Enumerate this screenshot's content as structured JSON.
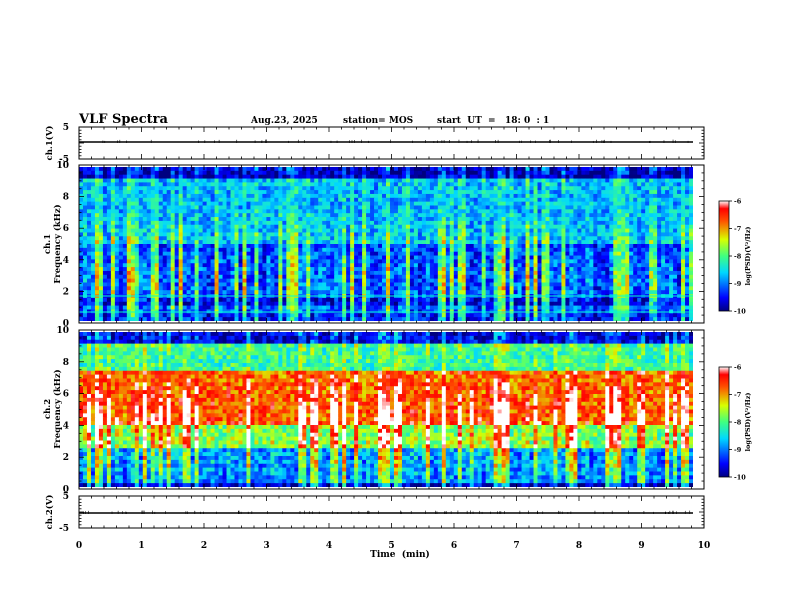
{
  "header": {
    "title": "VLF Spectra",
    "date": "Aug.23, 2025",
    "station": "station= MOS",
    "start": "start  UT  =   18: 0  : 1"
  },
  "chart_data": [
    {
      "type": "line",
      "ylabel": "ch.1(V)",
      "ylim": [
        -5,
        5
      ],
      "yticks": [
        "5",
        "-5"
      ],
      "xlim": [
        0,
        10
      ],
      "baseline": -1.5
    },
    {
      "type": "heatmap",
      "ylabel": "ch.1\nFrequency (kHz)",
      "ylim": [
        0,
        10
      ],
      "yticks": [
        "0",
        "2",
        "4",
        "6",
        "8",
        "10"
      ],
      "xlim": [
        0,
        10
      ],
      "colorbar": {
        "label": "log(PSD)(V²/Hz)",
        "range": [
          -10,
          -6
        ],
        "ticks": [
          "-6",
          "-7",
          "-8",
          "-9",
          "-10"
        ]
      }
    },
    {
      "type": "heatmap",
      "ylabel": "ch.2\nFrequency (kHz)",
      "ylim": [
        0,
        10
      ],
      "yticks": [
        "0",
        "2",
        "4",
        "6",
        "8",
        "10"
      ],
      "xlim": [
        0,
        10
      ],
      "colorbar": {
        "label": "log(PSD)(V²/Hz)",
        "range": [
          -10,
          -6
        ],
        "ticks": [
          "-6",
          "-7",
          "-8",
          "-9",
          "-10"
        ]
      }
    },
    {
      "type": "line",
      "ylabel": "ch.2(V)",
      "ylim": [
        -5,
        5
      ],
      "yticks": [
        "5",
        "-5"
      ],
      "xlim": [
        0,
        10
      ],
      "baseline": -1.5
    }
  ],
  "xaxis": {
    "label": "Time  (min)",
    "ticks": [
      "0",
      "1",
      "2",
      "3",
      "4",
      "5",
      "6",
      "7",
      "8",
      "9",
      "10"
    ]
  }
}
